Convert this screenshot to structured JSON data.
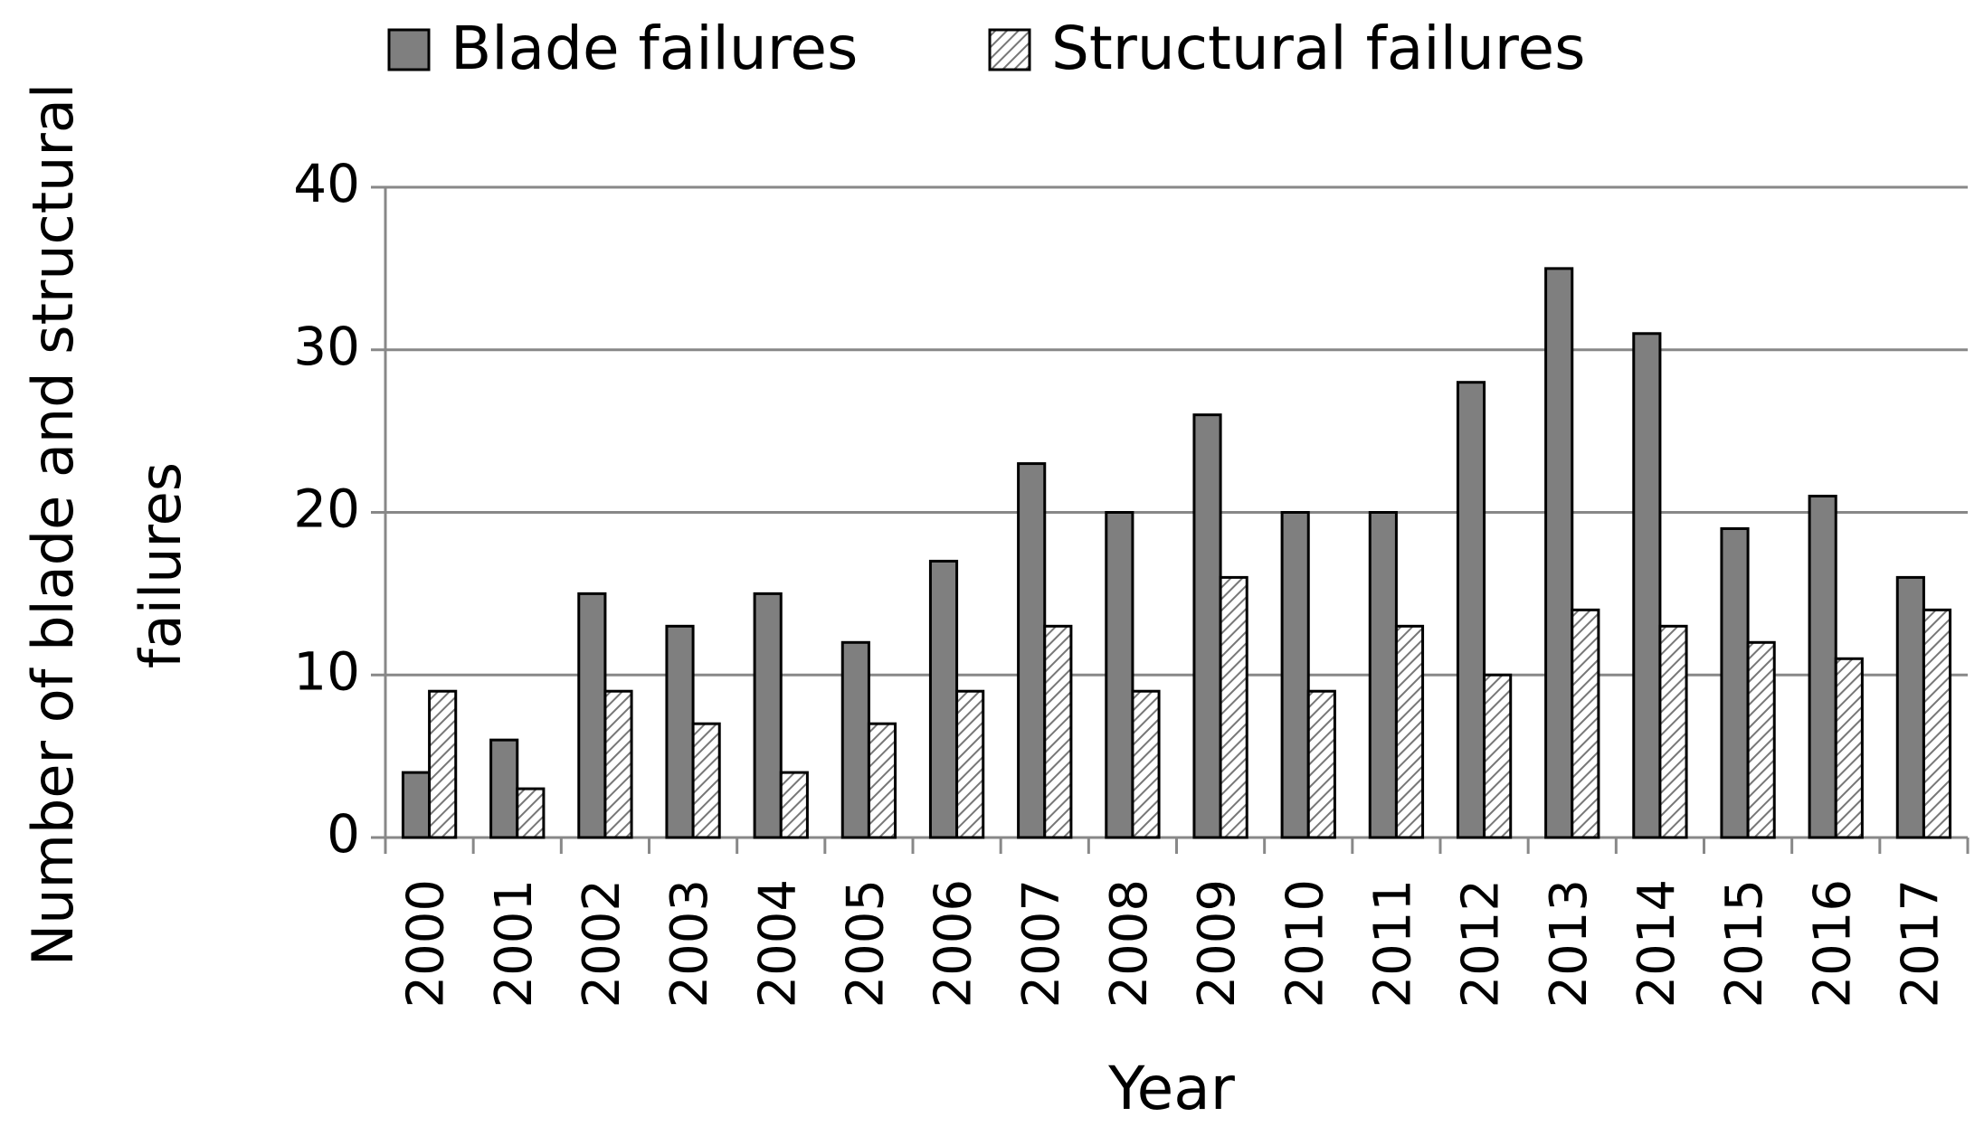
{
  "chart_data": {
    "type": "bar",
    "xlabel": "Year",
    "ylabel": [
      "Number of blade and structural",
      "failures"
    ],
    "categories": [
      "2000",
      "2001",
      "2002",
      "2003",
      "2004",
      "2005",
      "2006",
      "2007",
      "2008",
      "2009",
      "2010",
      "2011",
      "2012",
      "2013",
      "2014",
      "2015",
      "2016",
      "2017"
    ],
    "series": [
      {
        "name": "Blade failures",
        "color": "#7f7f7f",
        "hatch": false,
        "values": [
          4,
          6,
          15,
          13,
          15,
          12,
          17,
          23,
          20,
          26,
          20,
          20,
          28,
          35,
          31,
          19,
          21,
          16
        ]
      },
      {
        "name": "Structural failures",
        "color": "#ffffff",
        "hatch": true,
        "values": [
          9,
          3,
          9,
          7,
          4,
          7,
          9,
          13,
          9,
          16,
          9,
          13,
          10,
          14,
          13,
          12,
          11,
          14
        ]
      }
    ],
    "ylim": [
      0,
      40
    ],
    "yticks": [
      0,
      10,
      20,
      30,
      40
    ],
    "grid": true,
    "legend": "top"
  }
}
